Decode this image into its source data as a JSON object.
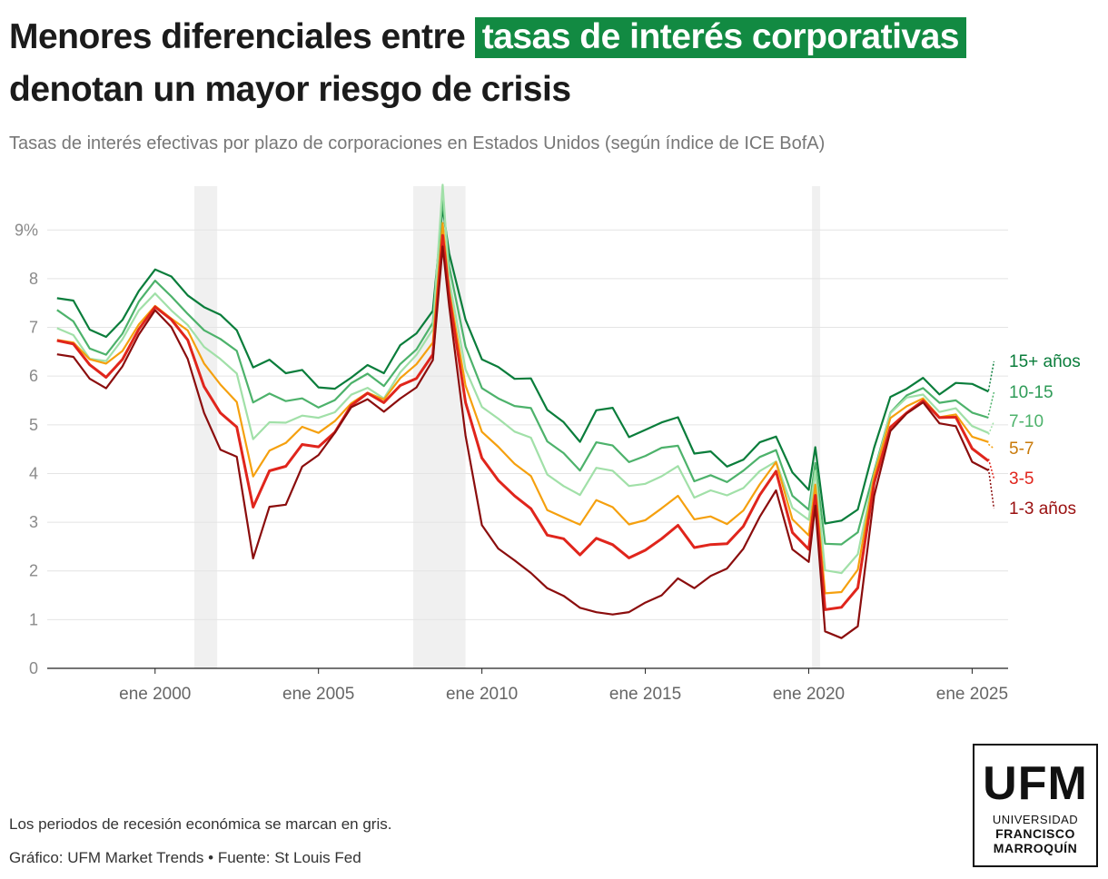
{
  "header": {
    "title_part1": "Menores diferenciales entre",
    "title_highlight": "tasas de interés corporativas",
    "title_part2": "denotan un mayor riesgo de crisis",
    "subtitle": "Tasas de interés efectivas por plazo de corporaciones en Estados Unidos (según índice de ICE BofA)"
  },
  "footer": {
    "note": "Los periodos de recesión económica se marcan en gris.",
    "source": "Gráfico: UFM Market Trends • Fuente: St Louis Fed"
  },
  "logo": {
    "line1": "UFM",
    "line2": "UNIVERSIDAD",
    "line3": "FRANCISCO",
    "line4": "MARROQUÍN"
  },
  "chart_data": {
    "type": "line",
    "title": "Tasas de interés efectivas por plazo de corporaciones en Estados Unidos (según índice de ICE BofA)",
    "xlabel": "",
    "ylabel": "",
    "xlim": [
      1996.7,
      2026.1
    ],
    "ylim": [
      0,
      9.9
    ],
    "y_ticks": [
      0,
      1,
      2,
      3,
      4,
      5,
      6,
      7,
      8,
      9
    ],
    "y_tick_labels": [
      "0",
      "1",
      "2",
      "3",
      "4",
      "5",
      "6",
      "7",
      "8",
      "9%"
    ],
    "x_ticks": [
      2000,
      2005,
      2010,
      2015,
      2020,
      2025
    ],
    "x_tick_labels": [
      "ene 2000",
      "ene 2005",
      "ene 2010",
      "ene 2015",
      "ene 2020",
      "ene 2025"
    ],
    "recessions": [
      [
        2001.2,
        2001.9
      ],
      [
        2007.9,
        2009.5
      ],
      [
        2020.1,
        2020.35
      ]
    ],
    "legend": "right-end labels",
    "x": [
      1997.0,
      1997.5,
      1998.0,
      1998.5,
      1999.0,
      1999.5,
      2000.0,
      2000.5,
      2001.0,
      2001.5,
      2002.0,
      2002.5,
      2003.0,
      2003.5,
      2004.0,
      2004.5,
      2005.0,
      2005.5,
      2006.0,
      2006.5,
      2007.0,
      2007.5,
      2008.0,
      2008.5,
      2008.8,
      2009.0,
      2009.5,
      2010.0,
      2010.5,
      2011.0,
      2011.5,
      2012.0,
      2012.5,
      2013.0,
      2013.5,
      2014.0,
      2014.5,
      2015.0,
      2015.5,
      2016.0,
      2016.5,
      2017.0,
      2017.5,
      2018.0,
      2018.5,
      2019.0,
      2019.5,
      2020.0,
      2020.2,
      2020.5,
      2021.0,
      2021.5,
      2022.0,
      2022.5,
      2023.0,
      2023.5,
      2024.0,
      2024.5,
      2025.0,
      2025.5
    ],
    "series": [
      {
        "name": "15+ años",
        "color": "#0a7d3b",
        "label_color": "#0a7d3b",
        "values": [
          7.6,
          7.5,
          6.9,
          6.8,
          7.2,
          7.8,
          8.2,
          8.0,
          7.6,
          7.4,
          7.3,
          7.0,
          6.2,
          6.3,
          6.0,
          6.1,
          5.8,
          5.8,
          6.0,
          6.2,
          6.0,
          6.6,
          6.9,
          7.4,
          9.5,
          8.5,
          7.1,
          6.3,
          6.2,
          6.0,
          6.0,
          5.3,
          5.0,
          4.6,
          5.3,
          5.4,
          4.8,
          4.9,
          5.0,
          5.1,
          4.4,
          4.5,
          4.2,
          4.3,
          4.6,
          4.7,
          4.0,
          3.7,
          4.6,
          3.0,
          3.0,
          3.2,
          4.5,
          5.6,
          5.8,
          6.0,
          5.6,
          5.8,
          5.8,
          5.7
        ]
      },
      {
        "name": "10-15",
        "color": "#4db26b",
        "label_color": "#2e9b57",
        "values": [
          7.3,
          7.1,
          6.6,
          6.5,
          6.9,
          7.5,
          7.9,
          7.6,
          7.3,
          7.0,
          6.8,
          6.5,
          5.4,
          5.6,
          5.5,
          5.6,
          5.4,
          5.5,
          5.8,
          6.0,
          5.8,
          6.3,
          6.6,
          7.1,
          9.6,
          8.2,
          6.6,
          5.8,
          5.6,
          5.4,
          5.3,
          4.6,
          4.4,
          4.1,
          4.7,
          4.6,
          4.2,
          4.3,
          4.5,
          4.6,
          3.9,
          4.0,
          3.8,
          4.0,
          4.3,
          4.5,
          3.6,
          3.3,
          4.2,
          2.5,
          2.5,
          2.8,
          4.1,
          5.3,
          5.6,
          5.7,
          5.4,
          5.5,
          5.3,
          5.2
        ]
      },
      {
        "name": "7-10",
        "color": "#a1e0a8",
        "label_color": "#4db26b",
        "values": [
          7.0,
          6.9,
          6.4,
          6.3,
          6.7,
          7.3,
          7.7,
          7.4,
          7.1,
          6.6,
          6.3,
          6.0,
          4.7,
          5.1,
          5.1,
          5.2,
          5.1,
          5.2,
          5.6,
          5.8,
          5.6,
          6.1,
          6.4,
          6.9,
          9.9,
          8.0,
          6.2,
          5.4,
          5.1,
          4.8,
          4.7,
          4.0,
          3.8,
          3.6,
          4.1,
          4.0,
          3.7,
          3.8,
          4.0,
          4.2,
          3.5,
          3.6,
          3.5,
          3.7,
          4.1,
          4.3,
          3.3,
          3.0,
          4.0,
          2.0,
          2.0,
          2.4,
          4.0,
          5.2,
          5.5,
          5.6,
          5.3,
          5.4,
          5.0,
          4.8
        ]
      },
      {
        "name": "5-7",
        "color": "#f5a00e",
        "label_color": "#c97a0a",
        "values": [
          6.8,
          6.7,
          6.3,
          6.2,
          6.5,
          7.1,
          7.5,
          7.2,
          6.9,
          6.2,
          5.8,
          5.5,
          4.0,
          4.5,
          4.6,
          4.9,
          4.8,
          5.1,
          5.5,
          5.7,
          5.5,
          5.9,
          6.2,
          6.7,
          9.2,
          7.8,
          5.8,
          4.8,
          4.5,
          4.2,
          4.0,
          3.3,
          3.1,
          2.9,
          3.4,
          3.3,
          3.0,
          3.1,
          3.3,
          3.5,
          3.0,
          3.1,
          3.0,
          3.3,
          3.8,
          4.2,
          3.0,
          2.7,
          3.8,
          1.6,
          1.6,
          2.0,
          3.9,
          5.1,
          5.4,
          5.6,
          5.2,
          5.2,
          4.7,
          4.6
        ]
      },
      {
        "name": "3-5",
        "color": "#e0251c",
        "label_color": "#e0251c",
        "values": [
          6.7,
          6.6,
          6.2,
          6.0,
          6.4,
          7.0,
          7.4,
          7.1,
          6.7,
          5.8,
          5.3,
          5.0,
          3.3,
          4.0,
          4.1,
          4.6,
          4.6,
          4.9,
          5.4,
          5.6,
          5.4,
          5.8,
          6.0,
          6.5,
          8.9,
          7.6,
          5.4,
          4.3,
          3.9,
          3.6,
          3.3,
          2.7,
          2.6,
          2.3,
          2.7,
          2.6,
          2.3,
          2.4,
          2.6,
          2.9,
          2.5,
          2.6,
          2.6,
          2.9,
          3.5,
          4.0,
          2.8,
          2.5,
          3.6,
          1.2,
          1.2,
          1.6,
          3.8,
          5.0,
          5.3,
          5.5,
          5.1,
          5.1,
          4.5,
          4.3
        ]
      },
      {
        "name": "1-3 años",
        "color": "#8b0d0d",
        "label_color": "#9a1010",
        "values": [
          6.4,
          6.4,
          6.0,
          5.8,
          6.2,
          6.8,
          7.3,
          7.0,
          6.4,
          5.3,
          4.5,
          4.3,
          2.2,
          3.3,
          3.4,
          4.2,
          4.4,
          4.8,
          5.3,
          5.5,
          5.3,
          5.6,
          5.8,
          6.3,
          8.6,
          7.4,
          4.8,
          3.0,
          2.5,
          2.2,
          1.9,
          1.6,
          1.5,
          1.3,
          1.2,
          1.1,
          1.1,
          1.3,
          1.5,
          1.9,
          1.7,
          1.9,
          2.0,
          2.4,
          3.1,
          3.7,
          2.5,
          2.2,
          3.3,
          0.7,
          0.6,
          0.9,
          3.6,
          4.9,
          5.2,
          5.4,
          5.0,
          5.0,
          4.3,
          4.1
        ]
      }
    ]
  }
}
